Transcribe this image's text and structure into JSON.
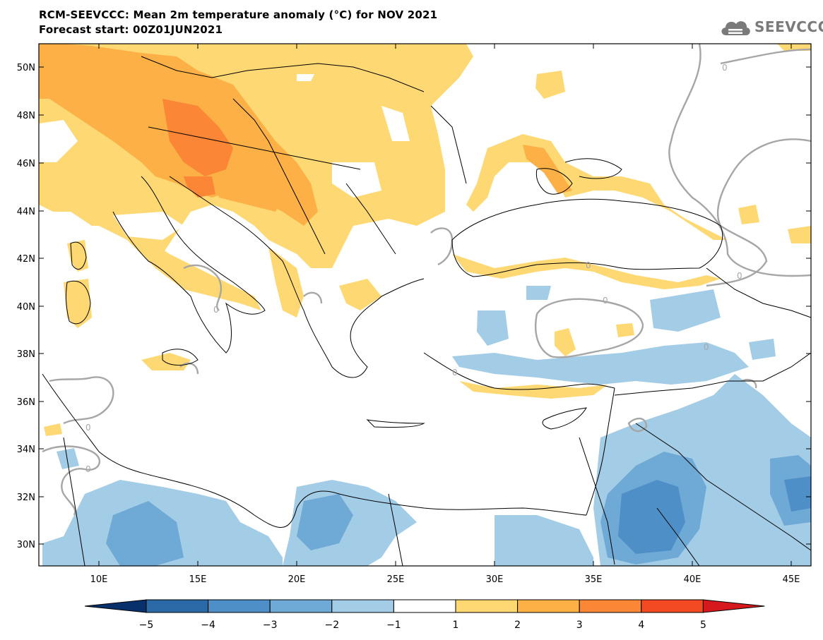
{
  "header": {
    "title": "RCM-SEEVCCC: Mean 2m temperature anomaly (°C) for NOV 2021",
    "subtitle": "Forecast start: 00Z01JUN2021"
  },
  "logo": {
    "text": "SEEVCCC",
    "icon": "cloud-icon"
  },
  "map": {
    "lat_labels": [
      "50N",
      "48N",
      "46N",
      "44N",
      "42N",
      "40N",
      "38N",
      "36N",
      "34N",
      "32N",
      "30N"
    ],
    "lon_labels": [
      "10E",
      "15E",
      "20E",
      "25E",
      "30E",
      "35E",
      "40E",
      "45E"
    ],
    "contour_label": "0"
  },
  "colorbar": {
    "labels": [
      "−5",
      "−4",
      "−3",
      "−2",
      "−1",
      "1",
      "2",
      "3",
      "4",
      "5"
    ],
    "colors": [
      "#08306b",
      "#2b6aa6",
      "#4d8fc6",
      "#6fa9d6",
      "#a3cce6",
      "#ffffff",
      "#fed872",
      "#fdb046",
      "#fb8636",
      "#f34a24",
      "#d5191c"
    ]
  },
  "palette": {
    "warm1": "#fed872",
    "warm2": "#fdb046",
    "warm3": "#fb8636",
    "warm4": "#f34a24",
    "cool1": "#a3cce6",
    "cool2": "#6fa9d6",
    "cool3": "#4d8fc6",
    "cool4": "#2b6aa6",
    "contour": "#a6a6a6",
    "border": "#000000"
  }
}
